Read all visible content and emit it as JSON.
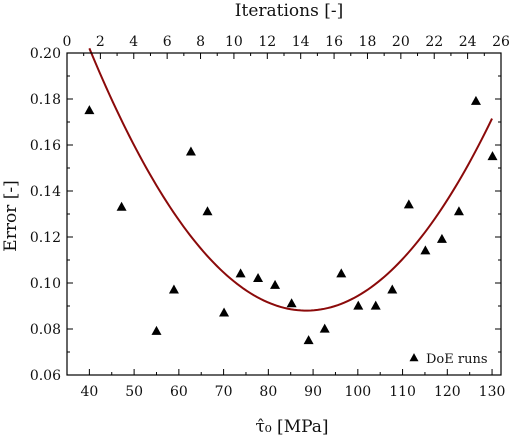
{
  "chart_data": {
    "type": "scatter",
    "title": "",
    "xlabel": "τ̂₀ [MPa]",
    "ylabel": "Error [-]",
    "top_xlabel": "Iterations [-]",
    "xlim": [
      35,
      132
    ],
    "ylim": [
      0.06,
      0.2
    ],
    "top_xlim": [
      0,
      26
    ],
    "x_ticks": [
      40,
      50,
      60,
      70,
      80,
      90,
      100,
      110,
      120,
      130
    ],
    "x_minor_ticks": [
      45,
      55,
      65,
      75,
      85,
      95,
      105,
      115,
      125
    ],
    "y_ticks": [
      0.06,
      0.08,
      0.1,
      0.12,
      0.14,
      0.16,
      0.18,
      0.2
    ],
    "y_tick_labels": [
      "0.06",
      "0.08",
      "0.10",
      "0.12",
      "0.14",
      "0.16",
      "0.18",
      "0.20"
    ],
    "y_minor_ticks": [
      0.07,
      0.09,
      0.11,
      0.13,
      0.15,
      0.17,
      0.19
    ],
    "top_ticks": [
      0,
      2,
      4,
      6,
      8,
      10,
      12,
      14,
      16,
      18,
      20,
      22,
      24,
      26
    ],
    "grid": false,
    "legend_position": "bottom-right",
    "series": [
      {
        "name": "DoE runs",
        "marker": "triangle",
        "color": "#000000",
        "points": [
          {
            "x": 40.0,
            "y": 0.175
          },
          {
            "x": 47.2,
            "y": 0.133
          },
          {
            "x": 55.0,
            "y": 0.079
          },
          {
            "x": 58.9,
            "y": 0.097
          },
          {
            "x": 62.7,
            "y": 0.157
          },
          {
            "x": 66.4,
            "y": 0.131
          },
          {
            "x": 70.1,
            "y": 0.087
          },
          {
            "x": 73.8,
            "y": 0.104
          },
          {
            "x": 77.7,
            "y": 0.102
          },
          {
            "x": 81.5,
            "y": 0.099
          },
          {
            "x": 85.2,
            "y": 0.091
          },
          {
            "x": 89.0,
            "y": 0.075
          },
          {
            "x": 92.6,
            "y": 0.08
          },
          {
            "x": 96.3,
            "y": 0.104
          },
          {
            "x": 100.1,
            "y": 0.09
          },
          {
            "x": 104.0,
            "y": 0.09
          },
          {
            "x": 107.7,
            "y": 0.097
          },
          {
            "x": 111.4,
            "y": 0.134
          },
          {
            "x": 115.1,
            "y": 0.114
          },
          {
            "x": 118.8,
            "y": 0.119
          },
          {
            "x": 122.6,
            "y": 0.131
          },
          {
            "x": 126.4,
            "y": 0.179
          },
          {
            "x": 130.1,
            "y": 0.155
          }
        ]
      }
    ],
    "fit_curve": {
      "type": "quadratic",
      "color": "#8b0a0a",
      "x_range": [
        40,
        130
      ],
      "vertex_x": 88.5,
      "vertex_y": 0.088,
      "coefficient": 4.848e-05
    }
  }
}
